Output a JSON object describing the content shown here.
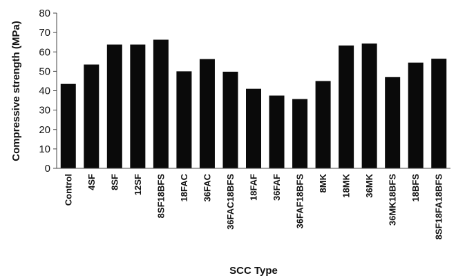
{
  "chart_data": {
    "type": "bar",
    "title": "",
    "xlabel": "SCC Type",
    "ylabel": "Compressive strength (MPa)",
    "ylim": [
      0,
      80
    ],
    "yticks": [
      0,
      10,
      20,
      30,
      40,
      50,
      60,
      70,
      80
    ],
    "grid": false,
    "categories": [
      "Control",
      "4SF",
      "8SF",
      "12SF",
      "8SF18BFS",
      "18FAC",
      "36FAC",
      "36FAC18BFS",
      "18FAF",
      "36FAF",
      "36FAF18BFS",
      "8MK",
      "18MK",
      "36MK",
      "36MK18BFS",
      "18BFS",
      "8SF18FA18BFS"
    ],
    "values": [
      43.5,
      53.5,
      63.8,
      63.8,
      66.3,
      50.0,
      56.3,
      49.8,
      41.0,
      37.5,
      35.7,
      45.0,
      63.3,
      64.3,
      47.0,
      54.5,
      56.5
    ],
    "colors": {
      "bar": "#0a0a0a",
      "axis": "#444444"
    }
  }
}
